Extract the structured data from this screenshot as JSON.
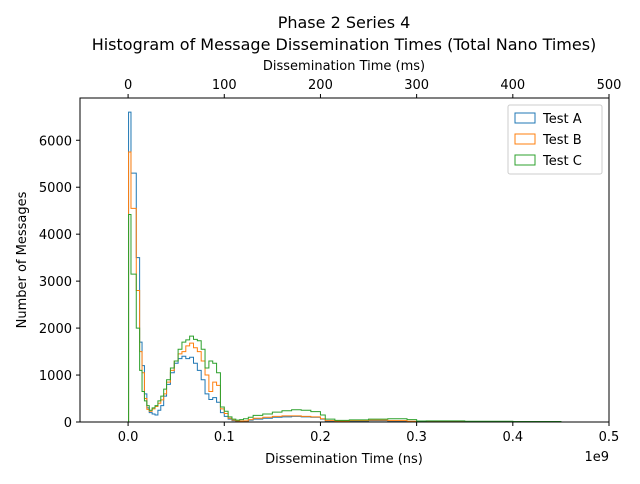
{
  "chart_data": {
    "type": "histogram",
    "title": "Phase 2 Series 4",
    "subtitle": "Histogram of Message Dissemination Times (Total Nano Times)",
    "xlabel": "Dissemination Time (ns)",
    "x_offset_text": "1e9",
    "ylabel": "Number of Messages",
    "secondary_xlabel": "Dissemination Time (ms)",
    "xlim": [
      -0.05,
      0.5
    ],
    "ylim": [
      0,
      6900
    ],
    "secondary_xlim": [
      -50,
      500
    ],
    "x_ticks": [
      0.0,
      0.1,
      0.2,
      0.3,
      0.4,
      0.5
    ],
    "x_tick_labels": [
      "0.0",
      "0.1",
      "0.2",
      "0.3",
      "0.4",
      "0.5"
    ],
    "y_ticks": [
      0,
      1000,
      2000,
      3000,
      4000,
      5000,
      6000
    ],
    "y_tick_labels": [
      "0",
      "1000",
      "2000",
      "3000",
      "4000",
      "5000",
      "6000"
    ],
    "secondary_x_ticks": [
      0,
      100,
      200,
      300,
      400,
      500
    ],
    "secondary_x_tick_labels": [
      "0",
      "100",
      "200",
      "300",
      "400",
      "500"
    ],
    "legend_position": "top-right",
    "grid": false,
    "series": [
      {
        "name": "Test A",
        "color": "#1f77b4",
        "x": [
          0.003,
          0.0085,
          0.012,
          0.0145,
          0.017,
          0.0195,
          0.022,
          0.025,
          0.028,
          0.031,
          0.034,
          0.037,
          0.04,
          0.044,
          0.048,
          0.052,
          0.056,
          0.06,
          0.064,
          0.068,
          0.072,
          0.076,
          0.08,
          0.084,
          0.088,
          0.092,
          0.096,
          0.1,
          0.104,
          0.108,
          0.112,
          0.116,
          0.12,
          0.125,
          0.13,
          0.14,
          0.15,
          0.16,
          0.17,
          0.18,
          0.19,
          0.2,
          0.205,
          0.215,
          0.23,
          0.25,
          0.27,
          0.29,
          0.3,
          0.31,
          0.35,
          0.4,
          0.45,
          0.5
        ],
        "y": [
          6600,
          5300,
          3500,
          1700,
          1200,
          600,
          300,
          200,
          170,
          150,
          250,
          350,
          550,
          800,
          1050,
          1250,
          1350,
          1400,
          1350,
          1380,
          1250,
          1100,
          900,
          600,
          480,
          520,
          420,
          200,
          120,
          60,
          30,
          20,
          15,
          20,
          40,
          60,
          80,
          100,
          110,
          120,
          110,
          100,
          60,
          20,
          15,
          20,
          30,
          20,
          10,
          8,
          10,
          5,
          3,
          0
        ]
      },
      {
        "name": "Test B",
        "color": "#ff7f0e",
        "x": [
          0.003,
          0.0085,
          0.012,
          0.0145,
          0.017,
          0.0195,
          0.022,
          0.025,
          0.028,
          0.031,
          0.034,
          0.037,
          0.04,
          0.044,
          0.048,
          0.052,
          0.056,
          0.06,
          0.064,
          0.068,
          0.072,
          0.076,
          0.08,
          0.084,
          0.088,
          0.092,
          0.096,
          0.1,
          0.104,
          0.108,
          0.112,
          0.116,
          0.12,
          0.125,
          0.13,
          0.14,
          0.15,
          0.16,
          0.17,
          0.18,
          0.19,
          0.2,
          0.205,
          0.215,
          0.23,
          0.25,
          0.27,
          0.29,
          0.3,
          0.31,
          0.35,
          0.4,
          0.45,
          0.5
        ],
        "y": [
          5750,
          4550,
          2800,
          1500,
          1050,
          500,
          270,
          230,
          280,
          330,
          400,
          470,
          600,
          850,
          1100,
          1300,
          1450,
          1500,
          1620,
          1680,
          1580,
          1500,
          1300,
          1000,
          650,
          850,
          780,
          280,
          180,
          80,
          40,
          25,
          20,
          25,
          50,
          80,
          100,
          120,
          130,
          130,
          120,
          110,
          70,
          30,
          20,
          30,
          40,
          30,
          15,
          10,
          12,
          8,
          4,
          0
        ]
      },
      {
        "name": "Test C",
        "color": "#2ca02c",
        "x": [
          0.003,
          0.0085,
          0.012,
          0.0145,
          0.017,
          0.0195,
          0.022,
          0.025,
          0.028,
          0.031,
          0.034,
          0.037,
          0.04,
          0.044,
          0.048,
          0.052,
          0.056,
          0.06,
          0.064,
          0.068,
          0.072,
          0.076,
          0.08,
          0.084,
          0.088,
          0.092,
          0.096,
          0.1,
          0.104,
          0.108,
          0.112,
          0.116,
          0.12,
          0.125,
          0.13,
          0.14,
          0.15,
          0.16,
          0.17,
          0.18,
          0.19,
          0.2,
          0.205,
          0.215,
          0.23,
          0.25,
          0.27,
          0.29,
          0.3,
          0.31,
          0.35,
          0.4,
          0.45,
          0.5
        ],
        "y": [
          4420,
          3150,
          2000,
          1100,
          650,
          450,
          350,
          250,
          300,
          350,
          450,
          550,
          700,
          900,
          1150,
          1300,
          1550,
          1700,
          1750,
          1830,
          1760,
          1730,
          1550,
          1150,
          1300,
          1250,
          1050,
          320,
          230,
          110,
          60,
          40,
          50,
          70,
          100,
          140,
          170,
          210,
          240,
          260,
          250,
          220,
          150,
          60,
          35,
          45,
          60,
          70,
          50,
          20,
          25,
          15,
          10,
          0
        ]
      }
    ]
  }
}
